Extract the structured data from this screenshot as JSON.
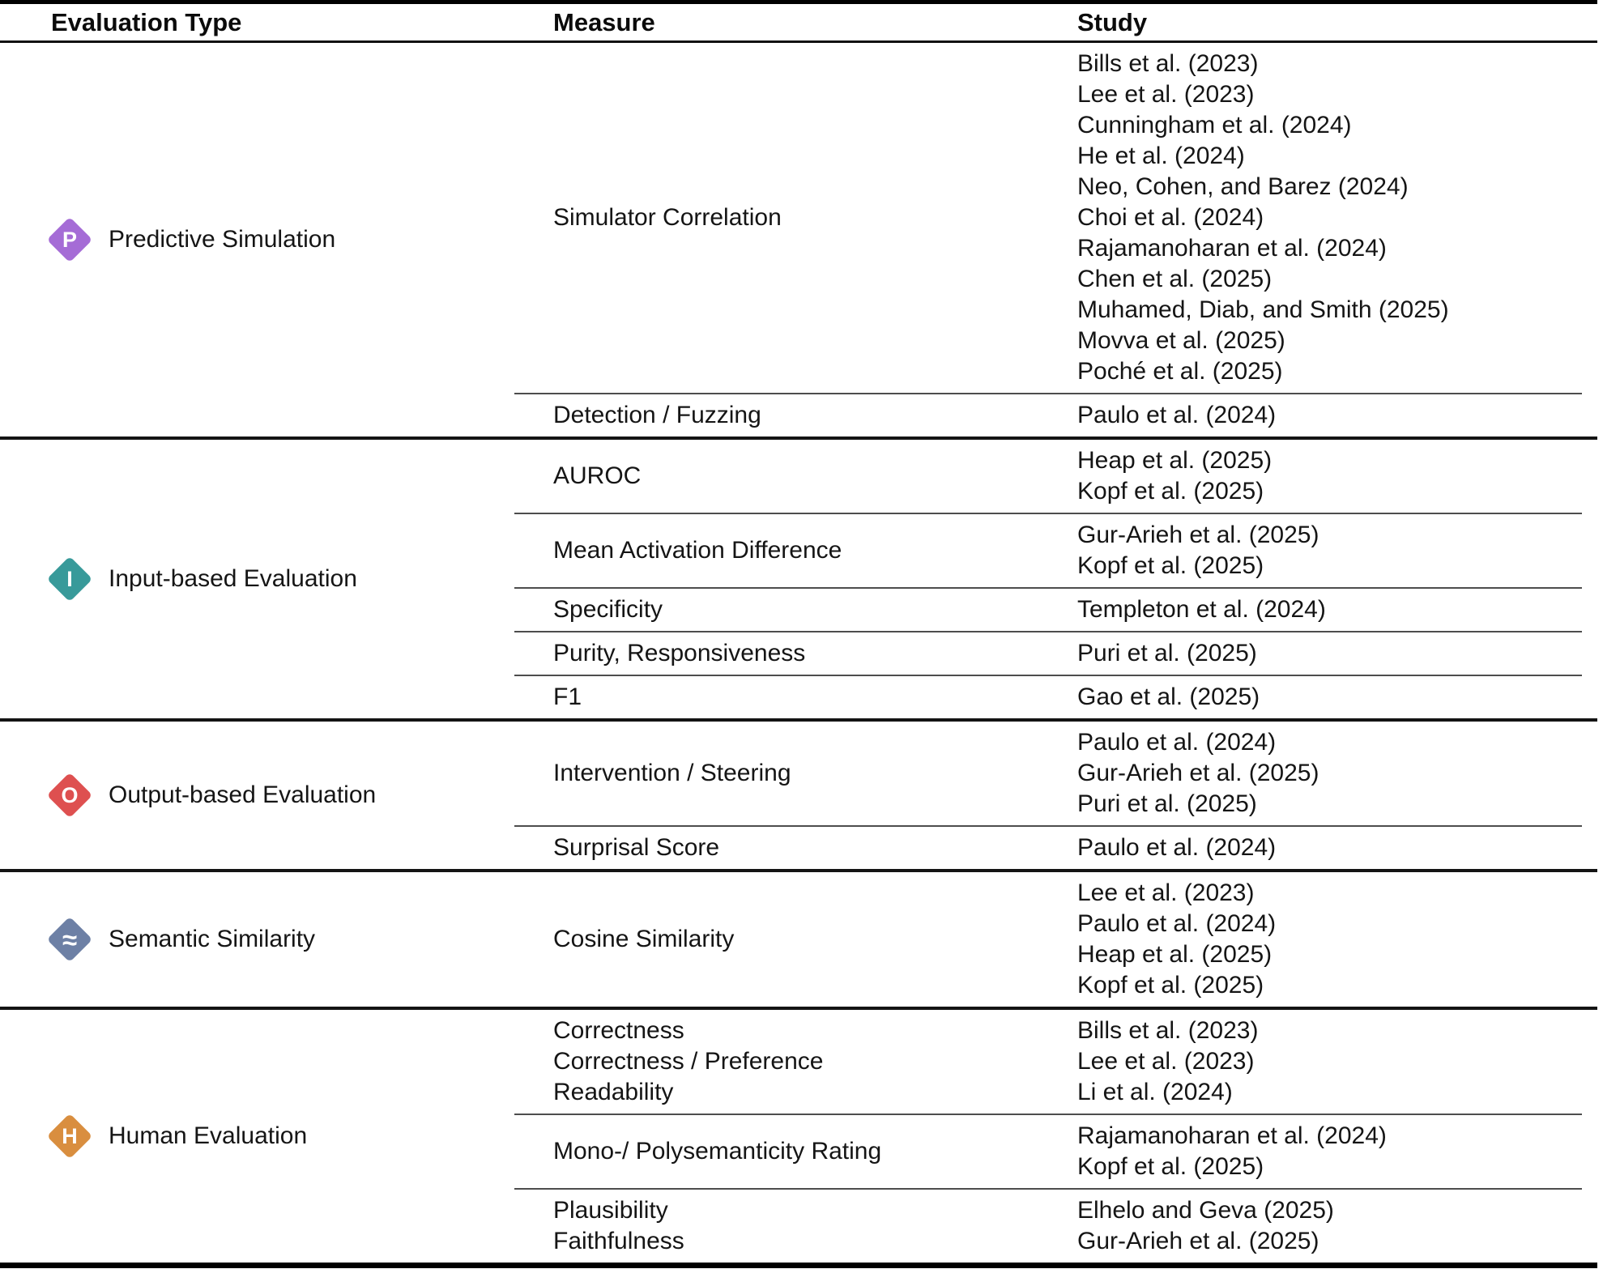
{
  "table": {
    "headers": [
      "Evaluation Type",
      "Measure",
      "Study"
    ],
    "sections": [
      {
        "type": {
          "label": "Predictive Simulation",
          "icon_glyph": "P",
          "icon_color": "#a56cd6"
        },
        "rows": [
          {
            "measure": "Simulator Correlation",
            "studies": [
              "Bills et al. (2023)",
              "Lee et al. (2023)",
              "Cunningham et al. (2024)",
              "He et al. (2024)",
              "Neo, Cohen, and Barez (2024)",
              "Choi et al. (2024)",
              "Rajamanoharan et al. (2024)",
              "Chen et al. (2025)",
              "Muhamed, Diab, and Smith (2025)",
              "Movva et al. (2025)",
              "Poché et al. (2025)"
            ]
          },
          {
            "measure": "Detection / Fuzzing",
            "studies": [
              "Paulo et al. (2024)"
            ]
          }
        ]
      },
      {
        "type": {
          "label": "Input-based Evaluation",
          "icon_glyph": "I",
          "icon_color": "#389a9a"
        },
        "rows": [
          {
            "measure": "AUROC",
            "studies": [
              "Heap et al. (2025)",
              "Kopf et al. (2025)"
            ]
          },
          {
            "measure": "Mean Activation Difference",
            "studies": [
              "Gur-Arieh et al. (2025)",
              "Kopf et al. (2025)"
            ]
          },
          {
            "measure": "Specificity",
            "studies": [
              "Templeton et al. (2024)"
            ]
          },
          {
            "measure": "Purity, Responsiveness",
            "studies": [
              "Puri et al. (2025)"
            ]
          },
          {
            "measure": "F1",
            "studies": [
              "Gao et al. (2025)"
            ]
          }
        ]
      },
      {
        "type": {
          "label": "Output-based Evaluation",
          "icon_glyph": "O",
          "icon_color": "#de5050"
        },
        "rows": [
          {
            "measure": "Intervention / Steering",
            "studies": [
              "Paulo et al. (2024)",
              "Gur-Arieh et al. (2025)",
              "Puri et al. (2025)"
            ]
          },
          {
            "measure": "Surprisal Score",
            "studies": [
              "Paulo et al. (2024)"
            ]
          }
        ]
      },
      {
        "type": {
          "label": "Semantic Similarity",
          "icon_glyph": "≈",
          "icon_color": "#6d80a5"
        },
        "rows": [
          {
            "measure": "Cosine Similarity",
            "studies": [
              "Lee et al. (2023)",
              "Paulo et al. (2024)",
              "Heap et al. (2025)",
              "Kopf et al. (2025)"
            ]
          }
        ]
      },
      {
        "type": {
          "label": "Human Evaluation",
          "icon_glyph": "H",
          "icon_color": "#d98e3f"
        },
        "rows": [
          {
            "measure": [
              "Correctness",
              "Correctness / Preference",
              "Readability"
            ],
            "studies": [
              "Bills et al. (2023)",
              "Lee et al. (2023)",
              "Li et al. (2024)"
            ]
          },
          {
            "measure": "Mono-/ Polysemanticity Rating",
            "studies": [
              "Rajamanoharan et al. (2024)",
              "Kopf et al. (2025)"
            ]
          },
          {
            "measure": [
              "Plausibility",
              "Faithfulness"
            ],
            "studies": [
              "Elhelo and Geva (2025)",
              "Gur-Arieh et al. (2025)"
            ]
          }
        ]
      }
    ]
  }
}
